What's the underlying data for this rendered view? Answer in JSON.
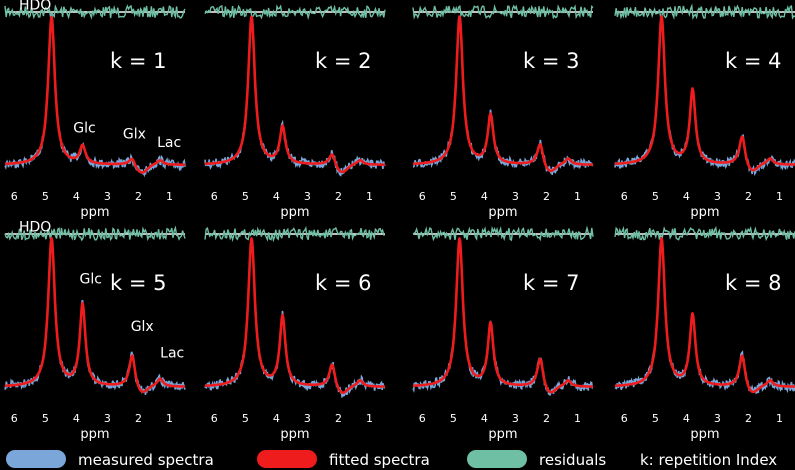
{
  "chart_data": {
    "type": "line",
    "xlabel": "ppm",
    "xticks": [
      "6",
      "5",
      "4",
      "3",
      "2",
      "1"
    ],
    "xlim": [
      6.3,
      0.5
    ],
    "series_styles": {
      "measured": {
        "name": "measured spectra",
        "color": "#7aa6d9"
      },
      "fitted": {
        "name": "fitted spectra",
        "color": "#ee1c1c"
      },
      "residuals": {
        "name": "residuals",
        "color": "#6fbfa5"
      }
    },
    "legend_extra": "k: repetition Index",
    "legend_position": "bottom",
    "panels": [
      {
        "title": "k = 1",
        "peaks": [
          {
            "ppm": 4.8,
            "amp": 1.0
          },
          {
            "ppm": 3.8,
            "amp": 0.12
          },
          {
            "ppm": 2.2,
            "amp": 0.05
          },
          {
            "ppm": 1.3,
            "amp": 0.03
          }
        ],
        "labels": [
          {
            "text": "HDO",
            "ppm": 5.85,
            "amp": 1.05
          },
          {
            "text": "Glc",
            "ppm": 4.1,
            "amp": 0.22
          },
          {
            "text": "Glx",
            "ppm": 2.5,
            "amp": 0.18
          },
          {
            "text": "Lac",
            "ppm": 1.4,
            "amp": 0.12
          }
        ]
      },
      {
        "title": "k = 2",
        "peaks": [
          {
            "ppm": 4.8,
            "amp": 1.0
          },
          {
            "ppm": 3.8,
            "amp": 0.25
          },
          {
            "ppm": 2.2,
            "amp": 0.08
          },
          {
            "ppm": 1.3,
            "amp": 0.03
          }
        ],
        "labels": []
      },
      {
        "title": "k = 3",
        "peaks": [
          {
            "ppm": 4.8,
            "amp": 1.0
          },
          {
            "ppm": 3.8,
            "amp": 0.33
          },
          {
            "ppm": 2.2,
            "amp": 0.15
          },
          {
            "ppm": 1.3,
            "amp": 0.04
          }
        ],
        "labels": []
      },
      {
        "title": "k = 4",
        "peaks": [
          {
            "ppm": 4.8,
            "amp": 1.0
          },
          {
            "ppm": 3.8,
            "amp": 0.5
          },
          {
            "ppm": 2.2,
            "amp": 0.2
          },
          {
            "ppm": 1.3,
            "amp": 0.04
          }
        ],
        "labels": []
      },
      {
        "title": "k = 5",
        "peaks": [
          {
            "ppm": 4.8,
            "amp": 1.0
          },
          {
            "ppm": 3.8,
            "amp": 0.55
          },
          {
            "ppm": 2.2,
            "amp": 0.22
          },
          {
            "ppm": 1.3,
            "amp": 0.05
          }
        ],
        "labels": [
          {
            "text": "HDO",
            "ppm": 5.85,
            "amp": 1.05
          },
          {
            "text": "Glc",
            "ppm": 3.9,
            "amp": 0.7
          },
          {
            "text": "Glx",
            "ppm": 2.25,
            "amp": 0.38
          },
          {
            "text": "Lac",
            "ppm": 1.3,
            "amp": 0.2
          }
        ]
      },
      {
        "title": "k = 6",
        "peaks": [
          {
            "ppm": 4.8,
            "amp": 1.0
          },
          {
            "ppm": 3.8,
            "amp": 0.47
          },
          {
            "ppm": 2.2,
            "amp": 0.16
          },
          {
            "ppm": 1.3,
            "amp": 0.04
          }
        ],
        "labels": []
      },
      {
        "title": "k = 7",
        "peaks": [
          {
            "ppm": 4.8,
            "amp": 1.0
          },
          {
            "ppm": 3.8,
            "amp": 0.42
          },
          {
            "ppm": 2.2,
            "amp": 0.2
          },
          {
            "ppm": 1.3,
            "amp": 0.04
          }
        ],
        "labels": []
      },
      {
        "title": "k = 8",
        "peaks": [
          {
            "ppm": 4.8,
            "amp": 1.0
          },
          {
            "ppm": 3.8,
            "amp": 0.48
          },
          {
            "ppm": 2.2,
            "amp": 0.22
          },
          {
            "ppm": 1.3,
            "amp": 0.04
          }
        ],
        "labels": []
      }
    ]
  }
}
